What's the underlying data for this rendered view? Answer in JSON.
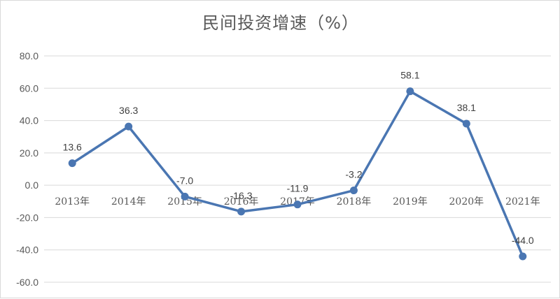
{
  "chart_data": {
    "type": "line",
    "title": "民间投资增速（%）",
    "xlabel": "",
    "ylabel": "",
    "categories": [
      "2013年",
      "2014年",
      "2015年",
      "2016年",
      "2017年",
      "2018年",
      "2019年",
      "2020年",
      "2021年"
    ],
    "series": [
      {
        "values": [
          13.6,
          36.3,
          -7.0,
          -16.3,
          -11.9,
          -3.2,
          58.1,
          38.1,
          -44.0
        ]
      }
    ],
    "data_labels": [
      "13.6",
      "36.3",
      "-7.0",
      "-16.3",
      "-11.9",
      "-3.2",
      "58.1",
      "38.1",
      "-44.0"
    ],
    "ylim": [
      -60,
      80
    ],
    "yticks": [
      "80.0",
      "60.0",
      "40.0",
      "20.0",
      "0.0",
      "-20.0",
      "-40.0",
      "-60.0"
    ],
    "grid": true,
    "legend": "none",
    "colors": {
      "line": "#4a76b2",
      "grid": "#d9d9d9",
      "text": "#595959"
    }
  }
}
